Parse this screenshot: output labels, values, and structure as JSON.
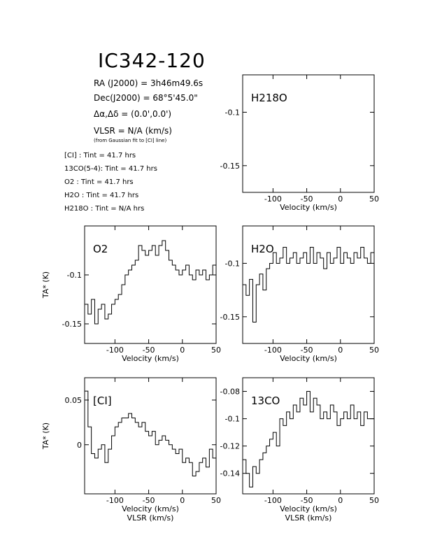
{
  "header": {
    "title": "IC342-120",
    "ra": "RA (J2000) = 3h46m49.6s",
    "dec": "Dec(J2000) = 68°5'45.0\"",
    "offset": "Δα,Δδ = (0.0',0.0')",
    "vlsr": "VLSR = N/A (km/s)",
    "vlsr_note": "(from Gaussian fit to [CI] line)",
    "tint": [
      "[CI] : Tint = 41.7 hrs",
      "13CO(5-4): Tint = 41.7 hrs",
      "O2 : Tint = 41.7 hrs",
      "H2O : Tint = 41.7 hrs",
      "H218O : Tint = N/A hrs"
    ]
  },
  "chart_data": [
    {
      "type": "line",
      "panel": "H2(18)O",
      "label": "H218O",
      "xlabel": "Velocity (km/s)",
      "ylabel": "",
      "xlim": [
        -145,
        50
      ],
      "ylim": [
        -0.175,
        -0.065
      ],
      "xticks": [
        -100,
        -50,
        0,
        50
      ],
      "yticks": [
        -0.1,
        -0.15
      ],
      "xticklabels": [
        "-100",
        "-50",
        "0",
        "50"
      ],
      "yticklabels": [
        "-0.1",
        "-0.15"
      ],
      "series": [
        {
          "x": [],
          "y": []
        }
      ]
    },
    {
      "type": "line",
      "panel": "O2",
      "label": "O2",
      "xlabel": "Velocity (km/s)",
      "ylabel": "TA* (K)",
      "xlim": [
        -145,
        50
      ],
      "ylim": [
        -0.17,
        -0.05
      ],
      "xticks": [
        -100,
        -50,
        0,
        50
      ],
      "yticks": [
        -0.1,
        -0.15
      ],
      "xticklabels": [
        "-100",
        "-50",
        "0",
        "50"
      ],
      "yticklabels": [
        "-0.1",
        "-0.15"
      ],
      "series": [
        {
          "x": [
            -145,
            -140,
            -135,
            -130,
            -125,
            -120,
            -115,
            -110,
            -105,
            -100,
            -95,
            -90,
            -85,
            -80,
            -75,
            -70,
            -65,
            -60,
            -55,
            -50,
            -45,
            -40,
            -35,
            -30,
            -25,
            -20,
            -15,
            -10,
            -5,
            0,
            5,
            10,
            15,
            20,
            25,
            30,
            35,
            40,
            45,
            50
          ],
          "y": [
            -0.13,
            -0.14,
            -0.125,
            -0.15,
            -0.135,
            -0.13,
            -0.145,
            -0.14,
            -0.13,
            -0.125,
            -0.12,
            -0.11,
            -0.1,
            -0.095,
            -0.09,
            -0.085,
            -0.07,
            -0.075,
            -0.08,
            -0.075,
            -0.07,
            -0.08,
            -0.07,
            -0.065,
            -0.075,
            -0.085,
            -0.09,
            -0.095,
            -0.1,
            -0.095,
            -0.09,
            -0.1,
            -0.105,
            -0.095,
            -0.1,
            -0.095,
            -0.105,
            -0.1,
            -0.09,
            -0.085
          ]
        }
      ]
    },
    {
      "type": "line",
      "panel": "H2O",
      "label": "H2O",
      "xlabel": "Velocity (km/s)",
      "ylabel": "",
      "xlim": [
        -145,
        50
      ],
      "ylim": [
        -0.175,
        -0.065
      ],
      "xticks": [
        -100,
        -50,
        0,
        50
      ],
      "yticks": [
        -0.1,
        -0.15
      ],
      "xticklabels": [
        "-100",
        "-50",
        "0",
        "50"
      ],
      "yticklabels": [
        "-0.1",
        "-0.15"
      ],
      "series": [
        {
          "x": [
            -145,
            -140,
            -135,
            -130,
            -125,
            -120,
            -115,
            -110,
            -105,
            -100,
            -95,
            -90,
            -85,
            -80,
            -75,
            -70,
            -65,
            -60,
            -55,
            -50,
            -45,
            -40,
            -35,
            -30,
            -25,
            -20,
            -15,
            -10,
            -5,
            0,
            5,
            10,
            15,
            20,
            25,
            30,
            35,
            40,
            45,
            50
          ],
          "y": [
            -0.12,
            -0.13,
            -0.115,
            -0.155,
            -0.12,
            -0.11,
            -0.125,
            -0.105,
            -0.1,
            -0.09,
            -0.1,
            -0.095,
            -0.085,
            -0.1,
            -0.095,
            -0.09,
            -0.1,
            -0.095,
            -0.09,
            -0.1,
            -0.085,
            -0.1,
            -0.09,
            -0.095,
            -0.105,
            -0.09,
            -0.1,
            -0.095,
            -0.085,
            -0.1,
            -0.09,
            -0.095,
            -0.1,
            -0.09,
            -0.095,
            -0.085,
            -0.095,
            -0.1,
            -0.09,
            -0.095
          ]
        }
      ]
    },
    {
      "type": "line",
      "panel": "CI",
      "label": "[CI]",
      "xlabel": "Velocity (km/s)",
      "xlabel2": "VLSR (km/s)",
      "ylabel": "TA* (K)",
      "xlim": [
        -145,
        50
      ],
      "ylim": [
        -0.055,
        0.075
      ],
      "xticks": [
        -100,
        -50,
        0,
        50
      ],
      "yticks": [
        0.05,
        0
      ],
      "xticklabels": [
        "-100",
        "-50",
        "0",
        "50"
      ],
      "yticklabels": [
        "0.05",
        "0"
      ],
      "series": [
        {
          "x": [
            -145,
            -140,
            -135,
            -130,
            -125,
            -120,
            -115,
            -110,
            -105,
            -100,
            -95,
            -90,
            -85,
            -80,
            -75,
            -70,
            -65,
            -60,
            -55,
            -50,
            -45,
            -40,
            -35,
            -30,
            -25,
            -20,
            -15,
            -10,
            -5,
            0,
            5,
            10,
            15,
            20,
            25,
            30,
            35,
            40,
            45,
            50
          ],
          "y": [
            0.06,
            0.02,
            -0.01,
            -0.015,
            -0.005,
            0.0,
            -0.02,
            -0.005,
            0.01,
            0.02,
            0.025,
            0.03,
            0.03,
            0.035,
            0.03,
            0.025,
            0.02,
            0.025,
            0.015,
            0.01,
            0.015,
            0.0,
            0.005,
            0.01,
            0.005,
            0.0,
            -0.005,
            -0.01,
            -0.005,
            -0.02,
            -0.015,
            -0.02,
            -0.035,
            -0.03,
            -0.02,
            -0.015,
            -0.025,
            -0.005,
            -0.015,
            -0.02
          ]
        }
      ]
    },
    {
      "type": "line",
      "panel": "13CO",
      "label": "13CO",
      "xlabel": "Velocity (km/s)",
      "xlabel2": "VLSR (km/s)",
      "ylabel": "",
      "xlim": [
        -145,
        50
      ],
      "ylim": [
        -0.155,
        -0.07
      ],
      "xticks": [
        -100,
        -50,
        0,
        50
      ],
      "yticks": [
        -0.08,
        -0.1,
        -0.12,
        -0.14
      ],
      "xticklabels": [
        "-100",
        "-50",
        "0",
        "50"
      ],
      "yticklabels": [
        "-0.08",
        "-0.1",
        "-0.12",
        "-0.14"
      ],
      "series": [
        {
          "x": [
            -145,
            -140,
            -135,
            -130,
            -125,
            -120,
            -115,
            -110,
            -105,
            -100,
            -95,
            -90,
            -85,
            -80,
            -75,
            -70,
            -65,
            -60,
            -55,
            -50,
            -45,
            -40,
            -35,
            -30,
            -25,
            -20,
            -15,
            -10,
            -5,
            0,
            5,
            10,
            15,
            20,
            25,
            30,
            35,
            40,
            45,
            50
          ],
          "y": [
            -0.13,
            -0.14,
            -0.15,
            -0.135,
            -0.14,
            -0.13,
            -0.125,
            -0.12,
            -0.115,
            -0.11,
            -0.12,
            -0.1,
            -0.105,
            -0.095,
            -0.1,
            -0.09,
            -0.095,
            -0.085,
            -0.09,
            -0.08,
            -0.095,
            -0.085,
            -0.09,
            -0.1,
            -0.095,
            -0.1,
            -0.09,
            -0.095,
            -0.105,
            -0.1,
            -0.095,
            -0.1,
            -0.09,
            -0.1,
            -0.095,
            -0.105,
            -0.095,
            -0.1,
            -0.1,
            -0.11
          ]
        }
      ]
    }
  ]
}
